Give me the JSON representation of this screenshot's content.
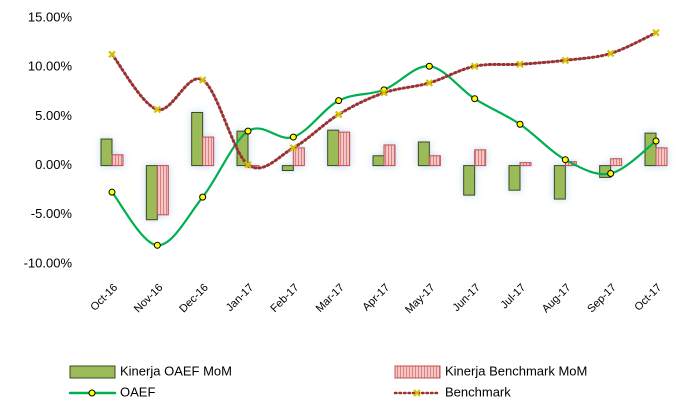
{
  "chart_data": {
    "type": "combo",
    "categories": [
      "Oct-16",
      "Nov-16",
      "Dec-16",
      "Jan-17",
      "Feb-17",
      "Mar-17",
      "Apr-17",
      "May-17",
      "Jun-17",
      "Jul-17",
      "Aug-17",
      "Sep-17",
      "Oct-17"
    ],
    "ylim": [
      -10,
      15
    ],
    "yticks": [
      {
        "value": -10,
        "label": "-10.00%"
      },
      {
        "value": -5,
        "label": "-5.00%"
      },
      {
        "value": 0,
        "label": "0.00%"
      },
      {
        "value": 5,
        "label": "5.00%"
      },
      {
        "value": 10,
        "label": "10.00%"
      },
      {
        "value": 15,
        "label": "15.00%"
      }
    ],
    "series": [
      {
        "name": "Kinerja OAEF MoM",
        "type": "bar",
        "color": "#9bbb59",
        "values": [
          2.7,
          -5.5,
          5.4,
          3.5,
          -0.5,
          3.6,
          1.0,
          2.4,
          -3.0,
          -2.5,
          -3.4,
          -1.2,
          3.3
        ]
      },
      {
        "name": "Kinerja Benchmark MoM",
        "type": "bar",
        "color": "#e6a0a0",
        "values": [
          1.1,
          -5.0,
          2.9,
          -0.2,
          1.8,
          3.4,
          2.1,
          1.0,
          1.6,
          0.3,
          0.4,
          0.7,
          1.8
        ]
      },
      {
        "name": "OAEF",
        "type": "line",
        "color": "#00b050",
        "values": [
          -2.7,
          -8.1,
          -3.2,
          3.5,
          2.9,
          6.6,
          7.7,
          10.1,
          6.8,
          4.2,
          0.6,
          -0.8,
          2.5
        ]
      },
      {
        "name": "Benchmark",
        "type": "line",
        "color": "#993333",
        "values": [
          11.3,
          5.7,
          8.7,
          0.1,
          1.8,
          5.2,
          7.4,
          8.4,
          10.1,
          10.3,
          10.7,
          11.4,
          13.5
        ]
      }
    ],
    "legend": "bottom"
  }
}
